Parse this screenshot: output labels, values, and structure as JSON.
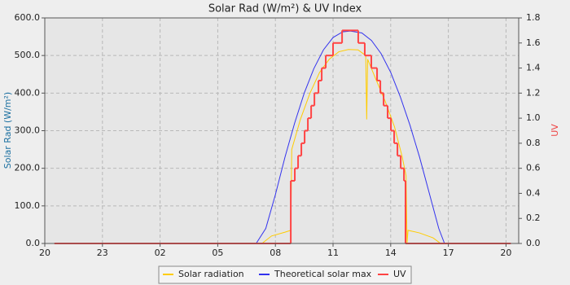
{
  "chart_data": {
    "type": "line",
    "title": "Solar Rad (W/m²) &  UV Index",
    "y_label": "Solar Rad (W/m²)",
    "y2_label": "UV",
    "xlim": [
      20,
      44.66
    ],
    "xticks": [
      {
        "value": 20,
        "label": "20"
      },
      {
        "value": 23,
        "label": "23"
      },
      {
        "value": 26,
        "label": "02"
      },
      {
        "value": 29,
        "label": "05"
      },
      {
        "value": 32,
        "label": "08"
      },
      {
        "value": 35,
        "label": "11"
      },
      {
        "value": 38,
        "label": "14"
      },
      {
        "value": 41,
        "label": "17"
      },
      {
        "value": 44,
        "label": "20"
      }
    ],
    "ylim": [
      0,
      600
    ],
    "yticks": [
      {
        "value": 0,
        "label": "0.0"
      },
      {
        "value": 100,
        "label": "100.0"
      },
      {
        "value": 200,
        "label": "200.0"
      },
      {
        "value": 300,
        "label": "300.0"
      },
      {
        "value": 400,
        "label": "400.0"
      },
      {
        "value": 500,
        "label": "500.0"
      },
      {
        "value": 600,
        "label": "600.0"
      }
    ],
    "y2lim": [
      0,
      1.8
    ],
    "y2ticks": [
      {
        "value": 0,
        "label": "0.0"
      },
      0.2,
      0.4,
      0.6,
      0.8,
      {
        "value": 1,
        "label": "1.0"
      },
      1.2,
      1.4,
      1.6,
      1.8
    ],
    "grid": true,
    "legend": "bottom",
    "series": [
      {
        "name": "Solar radiation",
        "color": "#ffcc00",
        "x": [
          20.5,
          31.3,
          31.8,
          32.5,
          32.8,
          32.85,
          33.3,
          33.8,
          34.3,
          34.8,
          35.3,
          35.8,
          36.3,
          36.7,
          36.75,
          36.8,
          37.2,
          37.7,
          38.2,
          38.6,
          38.8,
          38.85,
          38.9,
          39.5,
          40.2,
          40.6,
          44.25
        ],
        "values": [
          0,
          0,
          20,
          30,
          35,
          250,
          330,
          400,
          455,
          490,
          510,
          516,
          515,
          500,
          330,
          490,
          440,
          380,
          310,
          230,
          180,
          0,
          35,
          28,
          15,
          0,
          0
        ]
      },
      {
        "name": "Theoretical solar max",
        "color": "#3333ee",
        "x": [
          20.5,
          31.0,
          31.5,
          32.0,
          32.5,
          33.0,
          33.5,
          34.0,
          34.5,
          35.0,
          35.5,
          35.9,
          36.5,
          37.0,
          37.5,
          38.0,
          38.5,
          39.0,
          39.5,
          40.0,
          40.5,
          40.8,
          44.25
        ],
        "values": [
          0,
          0,
          40,
          130,
          230,
          320,
          400,
          465,
          515,
          548,
          563,
          565,
          560,
          540,
          505,
          455,
          390,
          315,
          230,
          135,
          40,
          0,
          0
        ]
      },
      {
        "name": "UV",
        "color": "#ff4444",
        "axis": "y2",
        "step": true,
        "x": [
          20.5,
          32.8,
          33.01,
          33.18,
          33.35,
          33.52,
          33.69,
          33.86,
          34.03,
          34.24,
          34.41,
          34.62,
          35.0,
          35.47,
          36.31,
          36.65,
          36.99,
          37.29,
          37.46,
          37.63,
          37.84,
          38.01,
          38.18,
          38.35,
          38.52,
          38.69,
          38.77,
          44.25
        ],
        "values": [
          0,
          0.5,
          0.6,
          0.7,
          0.8,
          0.9,
          1.0,
          1.1,
          1.2,
          1.3,
          1.4,
          1.5,
          1.6,
          1.7,
          1.6,
          1.5,
          1.4,
          1.3,
          1.2,
          1.1,
          1.0,
          0.9,
          0.8,
          0.7,
          0.6,
          0.5,
          0,
          0
        ]
      }
    ]
  }
}
